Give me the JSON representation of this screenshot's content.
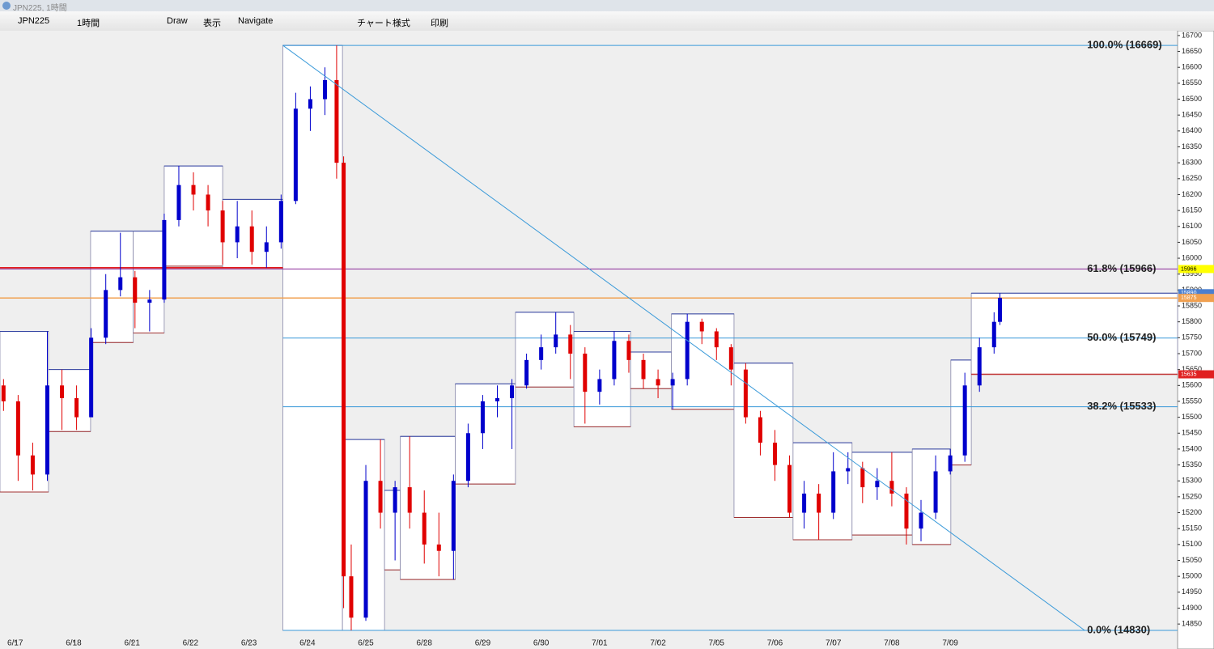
{
  "window": {
    "title": "JPN225, 1時間"
  },
  "toolbar": {
    "symbol": "JPN225",
    "timeframe": "1時間",
    "draw": "Draw",
    "view": "表示",
    "navigate": "Navigate",
    "chart_style": "チャート様式",
    "print": "印刷"
  },
  "chart_data": {
    "type": "candlestick",
    "xlim": [
      -0.26,
      19.89
    ],
    "ylim": [
      14802,
      16715
    ],
    "xticks": [
      {
        "value": 0,
        "label": "6/17"
      },
      {
        "value": 1,
        "label": "6/18"
      },
      {
        "value": 2,
        "label": "6/21"
      },
      {
        "value": 3,
        "label": "6/22"
      },
      {
        "value": 4,
        "label": "6/23"
      },
      {
        "value": 5,
        "label": "6/24"
      },
      {
        "value": 6,
        "label": "6/25"
      },
      {
        "value": 7,
        "label": "6/28"
      },
      {
        "value": 8,
        "label": "6/29"
      },
      {
        "value": 9,
        "label": "6/30"
      },
      {
        "value": 10,
        "label": "7/01"
      },
      {
        "value": 11,
        "label": "7/02"
      },
      {
        "value": 12,
        "label": "7/05"
      },
      {
        "value": 13,
        "label": "7/06"
      },
      {
        "value": 14,
        "label": "7/07"
      },
      {
        "value": 15,
        "label": "7/08"
      },
      {
        "value": 16,
        "label": "7/09"
      }
    ],
    "yticks": [
      14850,
      14900,
      14950,
      15000,
      15050,
      15100,
      15150,
      15200,
      15250,
      15300,
      15350,
      15400,
      15450,
      15500,
      15550,
      15600,
      15650,
      15700,
      15750,
      15800,
      15850,
      15900,
      15950,
      16000,
      16050,
      16100,
      16150,
      16200,
      16250,
      16300,
      16350,
      16400,
      16450,
      16500,
      16550,
      16600,
      16650,
      16700
    ],
    "up_color": "#0000cc",
    "down_color": "#e00000",
    "candles": {
      "x": [
        -0.2,
        0.05,
        0.3,
        0.55,
        0.8,
        1.05,
        1.3,
        1.55,
        1.8,
        2.05,
        2.3,
        2.55,
        2.8,
        3.05,
        3.3,
        3.55,
        3.8,
        4.05,
        4.3,
        4.55,
        4.8,
        5.05,
        5.3,
        5.5,
        5.62,
        5.75,
        6.0,
        6.25,
        6.5,
        6.75,
        7.0,
        7.25,
        7.5,
        7.75,
        8.0,
        8.25,
        8.5,
        8.75,
        9.0,
        9.25,
        9.5,
        9.75,
        10.0,
        10.25,
        10.5,
        10.75,
        11.0,
        11.25,
        11.5,
        11.75,
        12.0,
        12.25,
        12.5,
        12.75,
        13.0,
        13.25,
        13.5,
        13.75,
        14.0,
        14.25,
        14.5,
        14.75,
        15.0,
        15.25,
        15.5,
        15.75,
        16.0,
        16.25,
        16.5,
        16.75,
        16.85
      ],
      "open": [
        15600,
        15550,
        15380,
        15320,
        15600,
        15560,
        15500,
        15750,
        15900,
        15940,
        15860,
        15870,
        16120,
        16230,
        16200,
        16150,
        16050,
        16100,
        16020,
        16050,
        16180,
        16470,
        16500,
        16560,
        16300,
        15000,
        14870,
        15300,
        15200,
        15280,
        15200,
        15100,
        15080,
        15300,
        15450,
        15550,
        15560,
        15600,
        15680,
        15720,
        15760,
        15700,
        15580,
        15620,
        15740,
        15680,
        15620,
        15600,
        15620,
        15800,
        15770,
        15720,
        15650,
        15500,
        15420,
        15350,
        15200,
        15260,
        15200,
        15330,
        15340,
        15280,
        15300,
        15260,
        15150,
        15200,
        15330,
        15380,
        15600,
        15720,
        15800
      ],
      "high": [
        15620,
        15570,
        15420,
        15770,
        15650,
        15600,
        15780,
        15950,
        16080,
        15960,
        15900,
        16140,
        16290,
        16270,
        16230,
        16180,
        16180,
        16150,
        16100,
        16200,
        16520,
        16540,
        16600,
        16669,
        16320,
        15100,
        15350,
        15430,
        15300,
        15440,
        15270,
        15200,
        15320,
        15480,
        15570,
        15600,
        15620,
        15700,
        15760,
        15830,
        15790,
        15720,
        15650,
        15770,
        15760,
        15700,
        15650,
        15640,
        15825,
        15810,
        15780,
        15730,
        15670,
        15520,
        15460,
        15380,
        15300,
        15290,
        15390,
        15390,
        15360,
        15340,
        15390,
        15280,
        15240,
        15380,
        15400,
        15640,
        15750,
        15830,
        15890
      ],
      "low": [
        15520,
        15300,
        15270,
        15300,
        15460,
        15460,
        15740,
        15730,
        15880,
        15780,
        15770,
        15860,
        16100,
        16150,
        16100,
        15980,
        16000,
        15980,
        15970,
        16030,
        16170,
        16400,
        16450,
        16250,
        14900,
        14830,
        14860,
        15150,
        15050,
        15150,
        15040,
        15000,
        14990,
        15280,
        15400,
        15500,
        15400,
        15590,
        15650,
        15700,
        15620,
        15480,
        15540,
        15600,
        15640,
        15590,
        15560,
        15525,
        15600,
        15730,
        15680,
        15600,
        15480,
        15380,
        15300,
        15185,
        15150,
        15115,
        15180,
        15290,
        15230,
        15240,
        15220,
        15100,
        15110,
        15180,
        15320,
        15360,
        15580,
        15700,
        15790
      ],
      "close": [
        15550,
        15380,
        15320,
        15600,
        15560,
        15500,
        15750,
        15900,
        15940,
        15860,
        15870,
        16120,
        16230,
        16200,
        16150,
        16050,
        16100,
        16020,
        16050,
        16180,
        16470,
        16500,
        16560,
        16300,
        15000,
        14870,
        15300,
        15200,
        15280,
        15200,
        15100,
        15080,
        15300,
        15450,
        15550,
        15560,
        15600,
        15680,
        15720,
        15760,
        15700,
        15580,
        15620,
        15740,
        15680,
        15620,
        15600,
        15620,
        15800,
        15770,
        15720,
        15650,
        15500,
        15420,
        15350,
        15200,
        15260,
        15200,
        15330,
        15340,
        15280,
        15300,
        15260,
        15150,
        15200,
        15330,
        15380,
        15600,
        15720,
        15800,
        15875
      ]
    },
    "sessions": [
      {
        "x0": -0.26,
        "x1": 0.57,
        "high": 15770,
        "low": 15265
      },
      {
        "x0": 0.57,
        "x1": 1.29,
        "high": 15650,
        "low": 15455
      },
      {
        "x0": 1.29,
        "x1": 2.02,
        "high": 16085,
        "low": 15735
      },
      {
        "x0": 2.02,
        "x1": 2.55,
        "high": 16085,
        "low": 15765
      },
      {
        "x0": 2.55,
        "x1": 3.55,
        "high": 16290,
        "low": 15975
      },
      {
        "x0": 3.55,
        "x1": 4.58,
        "high": 16185,
        "low": 15970
      },
      {
        "x0": 4.58,
        "x1": 5.6,
        "high": 16669,
        "low": 14830
      },
      {
        "x0": 5.6,
        "x1": 6.32,
        "high": 15430,
        "low": 14830
      },
      {
        "x0": 6.32,
        "x1": 6.59,
        "high": 15270,
        "low": 15020
      },
      {
        "x0": 6.59,
        "x1": 7.53,
        "high": 15440,
        "low": 14990
      },
      {
        "x0": 7.53,
        "x1": 8.56,
        "high": 15605,
        "low": 15290
      },
      {
        "x0": 8.56,
        "x1": 9.56,
        "high": 15830,
        "low": 15595
      },
      {
        "x0": 9.56,
        "x1": 10.53,
        "high": 15770,
        "low": 15470
      },
      {
        "x0": 10.53,
        "x1": 11.23,
        "high": 15705,
        "low": 15590
      },
      {
        "x0": 11.23,
        "x1": 12.3,
        "high": 15825,
        "low": 15525
      },
      {
        "x0": 12.3,
        "x1": 13.31,
        "high": 15670,
        "low": 15185
      },
      {
        "x0": 13.31,
        "x1": 14.32,
        "high": 15420,
        "low": 15115
      },
      {
        "x0": 14.32,
        "x1": 15.35,
        "high": 15390,
        "low": 15130
      },
      {
        "x0": 15.35,
        "x1": 16.01,
        "high": 15400,
        "low": 15100
      },
      {
        "x0": 16.01,
        "x1": 16.36,
        "high": 15680,
        "low": 15350
      },
      {
        "x0": 16.36,
        "x1": 19.89,
        "high": 15890,
        "low": 15635
      }
    ],
    "fibonacci": {
      "from": {
        "x": 4.58,
        "y": 16669
      },
      "to": {
        "x": 18.3,
        "y": 14830
      },
      "levels": [
        {
          "value": 16669,
          "label": "100.0% (16669)",
          "color": "#3a9ad9",
          "x_from": 4.58
        },
        {
          "value": 15966,
          "label": "61.8% (15966)",
          "color": "#8b2a9a",
          "x_from": -0.26
        },
        {
          "value": 15749,
          "label": "50.0% (15749)",
          "color": "#3a9ad9",
          "x_from": 4.58
        },
        {
          "value": 15533,
          "label": "38.2% (15533)",
          "color": "#3a9ad9",
          "x_from": 4.58
        },
        {
          "value": 14830,
          "label": "0.0% (14830)",
          "color": "#3a9ad9",
          "x_from": 4.58
        }
      ]
    },
    "lines": [
      {
        "value": 15970,
        "color": "#e00000",
        "x_from": -0.26,
        "x_to": 4.58
      },
      {
        "value": 15875,
        "color": "#f0a050",
        "x_from": -0.26,
        "x_to": 19.89
      },
      {
        "value": 15635,
        "color": "#c03030",
        "x_from": 16.36,
        "x_to": 19.89
      }
    ],
    "price_tags": [
      {
        "value": 15966,
        "color": "#ffff00"
      },
      {
        "value": 15890,
        "color": "#4a7fd0"
      },
      {
        "value": 15875,
        "color": "#f0a050"
      },
      {
        "value": 15635,
        "color": "#e02020"
      }
    ]
  }
}
